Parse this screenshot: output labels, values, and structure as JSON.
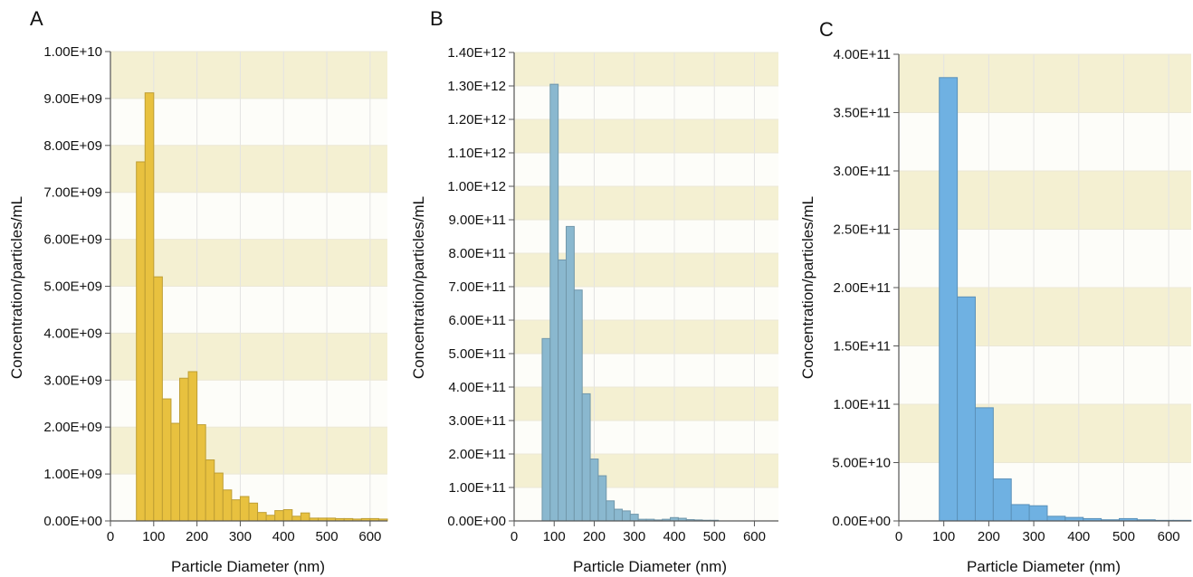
{
  "chart_data": [
    {
      "panel": "A",
      "type": "bar",
      "xlabel": "Particle Diameter (nm)",
      "ylabel": "Concentration/particles/mL",
      "xlim": [
        0,
        640
      ],
      "ylim": [
        0,
        10000000000
      ],
      "x_ticks": [
        0,
        100,
        200,
        300,
        400,
        500,
        600
      ],
      "x_tick_labels": [
        "0",
        "100",
        "200",
        "300",
        "400",
        "500",
        "600"
      ],
      "y_ticks": [
        0,
        1000000000,
        2000000000,
        3000000000,
        4000000000,
        5000000000,
        6000000000,
        7000000000,
        8000000000,
        9000000000,
        10000000000
      ],
      "y_tick_labels": [
        "0.00E+00",
        "1.00E+09",
        "2.00E+09",
        "3.00E+09",
        "4.00E+09",
        "5.00E+09",
        "6.00E+09",
        "7.00E+09",
        "8.00E+09",
        "9.00E+09",
        "1.00E+10"
      ],
      "bin_width": 20,
      "bin_starts": [
        60,
        80,
        100,
        120,
        140,
        160,
        180,
        200,
        220,
        240,
        260,
        280,
        300,
        320,
        340,
        360,
        380,
        400,
        420,
        440,
        460,
        480,
        500,
        520,
        540,
        560,
        580,
        600,
        620
      ],
      "values": [
        7650000000,
        9120000000,
        5200000000,
        2600000000,
        2080000000,
        3040000000,
        3180000000,
        2050000000,
        1300000000,
        1020000000,
        660000000,
        450000000,
        520000000,
        380000000,
        180000000,
        120000000,
        220000000,
        240000000,
        100000000,
        170000000,
        60000000,
        60000000,
        60000000,
        50000000,
        50000000,
        40000000,
        50000000,
        50000000,
        40000000
      ],
      "bar_color": "#e8c13f",
      "band_color": "#f4f0d2",
      "grid": true
    },
    {
      "panel": "B",
      "type": "bar",
      "xlabel": "Particle Diameter (nm)",
      "ylabel": "Concentration/particles/mL",
      "xlim": [
        0,
        660
      ],
      "ylim": [
        0,
        1400000000000
      ],
      "x_ticks": [
        0,
        100,
        200,
        300,
        400,
        500,
        600
      ],
      "x_tick_labels": [
        "0",
        "100",
        "200",
        "300",
        "400",
        "500",
        "600"
      ],
      "y_ticks": [
        0,
        100000000000,
        200000000000,
        300000000000,
        400000000000,
        500000000000,
        600000000000,
        700000000000,
        800000000000,
        900000000000,
        1000000000000,
        1100000000000,
        1200000000000,
        1300000000000,
        1400000000000
      ],
      "y_tick_labels": [
        "0.00E+00",
        "1.00E+11",
        "2.00E+11",
        "3.00E+11",
        "4.00E+11",
        "5.00E+11",
        "6.00E+11",
        "7.00E+11",
        "8.00E+11",
        "9.00E+11",
        "1.00E+12",
        "1.10E+12",
        "1.20E+12",
        "1.30E+12",
        "1.40E+12"
      ],
      "bin_width": 20,
      "bin_starts": [
        70,
        90,
        110,
        130,
        150,
        170,
        190,
        210,
        230,
        250,
        270,
        290,
        310,
        330,
        350,
        370,
        390,
        410,
        430,
        450,
        470,
        490
      ],
      "values": [
        545000000000,
        1305000000000,
        780000000000,
        880000000000,
        690000000000,
        380000000000,
        185000000000,
        135000000000,
        60000000000,
        35000000000,
        30000000000,
        20000000000,
        5000000000,
        5000000000,
        3000000000,
        5000000000,
        10000000000,
        8000000000,
        4000000000,
        3000000000,
        2000000000,
        2000000000
      ],
      "bar_color": "#8ab8cf",
      "band_color": "#f4f0d2",
      "grid": true
    },
    {
      "panel": "C",
      "type": "bar",
      "xlabel": "Particle Diameter (nm)",
      "ylabel": "Concentration/particles/mL",
      "xlim": [
        0,
        650
      ],
      "ylim": [
        0,
        400000000000
      ],
      "x_ticks": [
        0,
        100,
        200,
        300,
        400,
        500,
        600
      ],
      "x_tick_labels": [
        "0",
        "100",
        "200",
        "300",
        "400",
        "500",
        "600"
      ],
      "y_ticks": [
        0,
        50000000000,
        100000000000,
        150000000000,
        200000000000,
        250000000000,
        300000000000,
        350000000000,
        400000000000
      ],
      "y_tick_labels": [
        "0.00E+00",
        "5.00E+10",
        "1.00E+11",
        "1.50E+11",
        "2.00E+11",
        "2.50E+11",
        "3.00E+11",
        "3.50E+11",
        "4.00E+11"
      ],
      "bin_width": 40,
      "bin_starts": [
        90,
        130,
        170,
        210,
        250,
        290,
        330,
        370,
        410,
        450,
        490,
        530,
        570,
        610
      ],
      "values": [
        380000000000,
        192000000000,
        97000000000,
        36000000000,
        14000000000,
        13000000000,
        4000000000,
        3000000000,
        2000000000,
        1000000000,
        2000000000,
        1000000000,
        500000000,
        500000000
      ],
      "bar_color": "#6fb1e2",
      "band_color": "#f4f0d2",
      "grid": true
    }
  ]
}
